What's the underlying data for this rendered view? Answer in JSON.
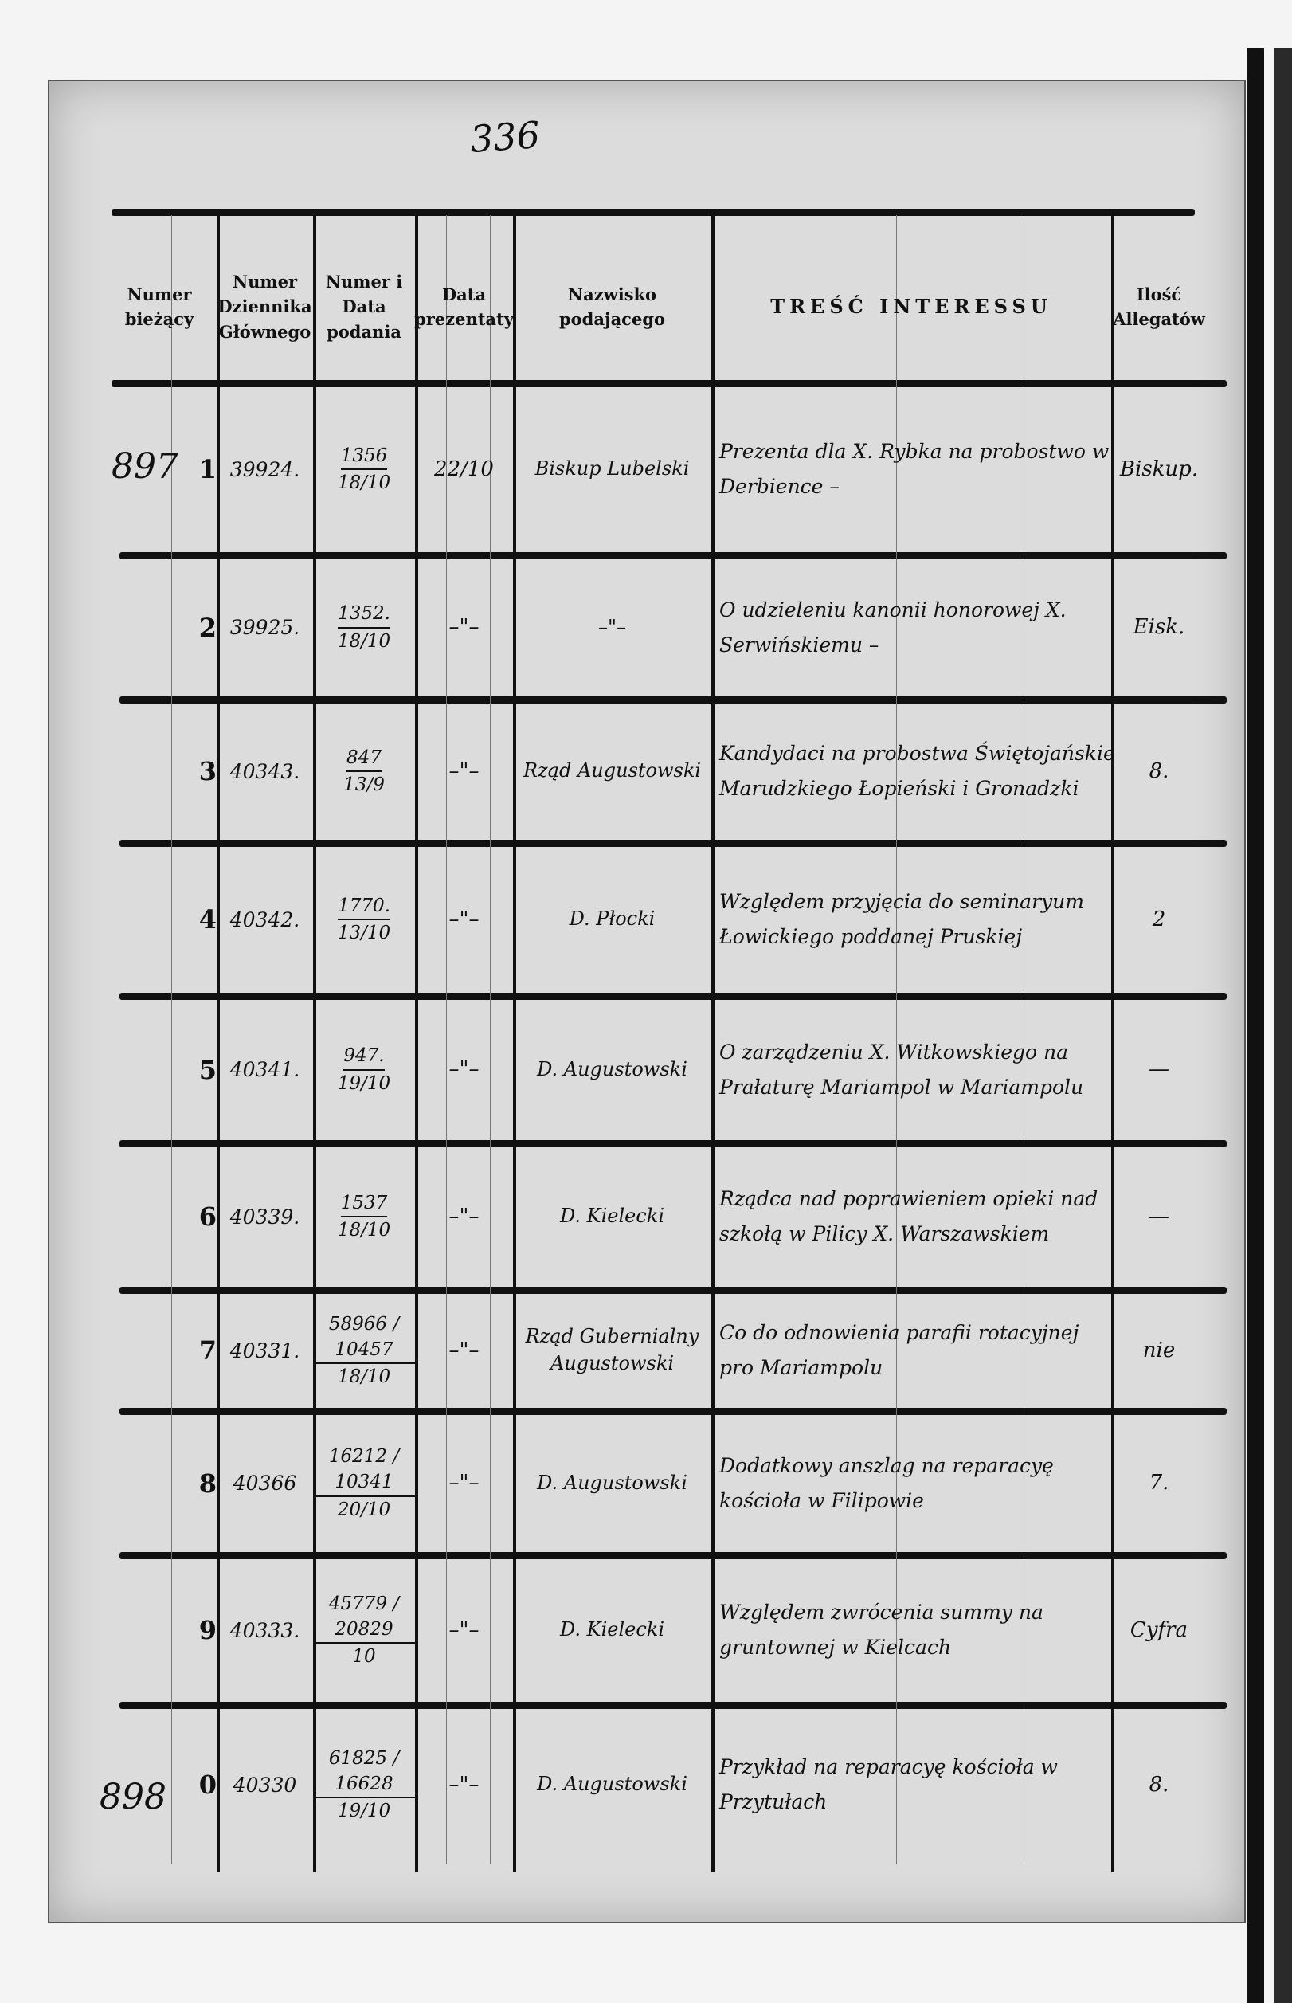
{
  "folio": "336",
  "margin_notes": [
    "897",
    "898"
  ],
  "headers": [
    "Numer bieżący",
    "Numer Dziennika Głównego",
    "Numer i Data podania",
    "Data prezentaty",
    "Nazwisko podającego",
    "TREŚĆ INTERESSU",
    "Ilość Allegatów"
  ],
  "rows": [
    {
      "num": "1",
      "dziennik": "39924.",
      "nr": "1356",
      "data": "18/10",
      "prez": "22/10",
      "nazwisko": "Biskup Lubelski",
      "tresc": "Prezenta dla X. Rybka na probostwo w Derbience –",
      "allegaty": "Biskup."
    },
    {
      "num": "2",
      "dziennik": "39925.",
      "nr": "1352.",
      "data": "18/10",
      "prez": "–\"–",
      "nazwisko": "–\"–",
      "tresc": "O udzieleniu kanonii honorowej X. Serwińskiemu –",
      "allegaty": "Eisk."
    },
    {
      "num": "3",
      "dziennik": "40343.",
      "nr": "847",
      "data": "13/9",
      "prez": "–\"–",
      "nazwisko": "Rząd Augustowski",
      "tresc": "Kandydaci na probostwa Świętojańskie Marudzkiego Łopieński i Gronadzki",
      "allegaty": "8."
    },
    {
      "num": "4",
      "dziennik": "40342.",
      "nr": "1770.",
      "data": "13/10",
      "prez": "–\"–",
      "nazwisko": "D. Płocki",
      "tresc": "Względem przyjęcia do seminaryum Łowickiego poddanej Pruskiej",
      "allegaty": "2"
    },
    {
      "num": "5",
      "dziennik": "40341.",
      "nr": "947.",
      "data": "19/10",
      "prez": "–\"–",
      "nazwisko": "D. Augustowski",
      "tresc": "O zarządzeniu X. Witkowskiego na Prałaturę Mariampol w Mariampolu",
      "allegaty": "—"
    },
    {
      "num": "6",
      "dziennik": "40339.",
      "nr": "1537",
      "data": "18/10",
      "prez": "–\"–",
      "nazwisko": "D. Kielecki",
      "tresc": "Rządca nad poprawieniem opieki nad szkołą w Pilicy X. Warszawskiem",
      "allegaty": "—"
    },
    {
      "num": "7",
      "dziennik": "40331.",
      "nr": "58966 / 10457",
      "data": "18/10",
      "prez": "–\"–",
      "nazwisko": "Rząd Gubernialny Augustowski",
      "tresc": "Co do odnowienia parafii rotacyjnej pro Mariampolu",
      "allegaty": "nie"
    },
    {
      "num": "8",
      "dziennik": "40366",
      "nr": "16212 / 10341",
      "data": "20/10",
      "prez": "–\"–",
      "nazwisko": "D. Augustowski",
      "tresc": "Dodatkowy anszlag na reparacyę kościoła w Filipowie",
      "allegaty": "7."
    },
    {
      "num": "9",
      "dziennik": "40333.",
      "nr": "45779 / 20829",
      "data": "10",
      "prez": "–\"–",
      "nazwisko": "D. Kielecki",
      "tresc": "Względem zwrócenia summy na gruntownej w Kielcach",
      "allegaty": "Cyfra"
    },
    {
      "num": "0",
      "dziennik": "40330",
      "nr": "61825 / 16628",
      "data": "19/10",
      "prez": "–\"–",
      "nazwisko": "D. Augustowski",
      "tresc": "Przykład na reparacyę kościoła w Przytułach",
      "allegaty": "8."
    }
  ]
}
